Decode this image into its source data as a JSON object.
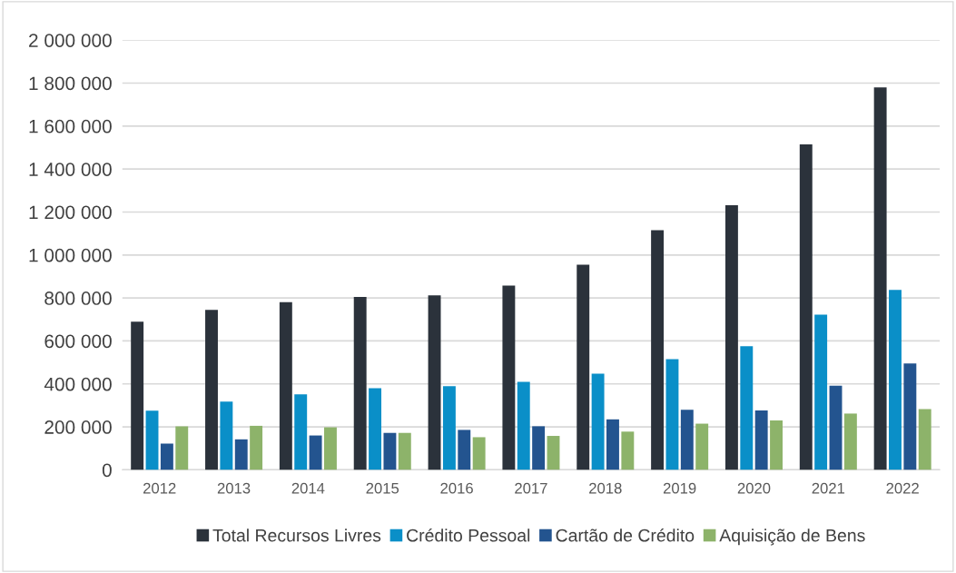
{
  "chart_data": {
    "type": "bar",
    "categories": [
      "2012",
      "2013",
      "2014",
      "2015",
      "2016",
      "2017",
      "2018",
      "2019",
      "2020",
      "2021",
      "2022"
    ],
    "series": [
      {
        "name": "Total Recursos Livres",
        "color": "#2b323b",
        "values": [
          690000,
          745000,
          780000,
          805000,
          812000,
          858000,
          955000,
          1115000,
          1232000,
          1515000,
          1780000
        ]
      },
      {
        "name": "Crédito Pessoal",
        "color": "#0a8fc8",
        "values": [
          275000,
          318000,
          352000,
          380000,
          390000,
          410000,
          448000,
          515000,
          575000,
          722000,
          838000
        ]
      },
      {
        "name": "Cartão de Crédito",
        "color": "#23548f",
        "values": [
          122000,
          142000,
          160000,
          172000,
          186000,
          203000,
          235000,
          280000,
          276000,
          392000,
          495000
        ]
      },
      {
        "name": "Aquisição de Bens",
        "color": "#8db36a",
        "values": [
          202000,
          205000,
          198000,
          172000,
          152000,
          158000,
          178000,
          215000,
          230000,
          262000,
          283000
        ]
      }
    ],
    "ylim": [
      0,
      2000000
    ],
    "yticks": [
      {
        "value": 0,
        "label": "0"
      },
      {
        "value": 200000,
        "label": "200 000"
      },
      {
        "value": 400000,
        "label": "400 000"
      },
      {
        "value": 600000,
        "label": "600 000"
      },
      {
        "value": 800000,
        "label": "800 000"
      },
      {
        "value": 1000000,
        "label": "1 000 000"
      },
      {
        "value": 1200000,
        "label": "1 200 000"
      },
      {
        "value": 1400000,
        "label": "1 400 000"
      },
      {
        "value": 1600000,
        "label": "1 600 000"
      },
      {
        "value": 1800000,
        "label": "1 800 000"
      },
      {
        "value": 2000000,
        "label": "2 000 000"
      }
    ],
    "grid": "y",
    "legend": "bottom"
  }
}
